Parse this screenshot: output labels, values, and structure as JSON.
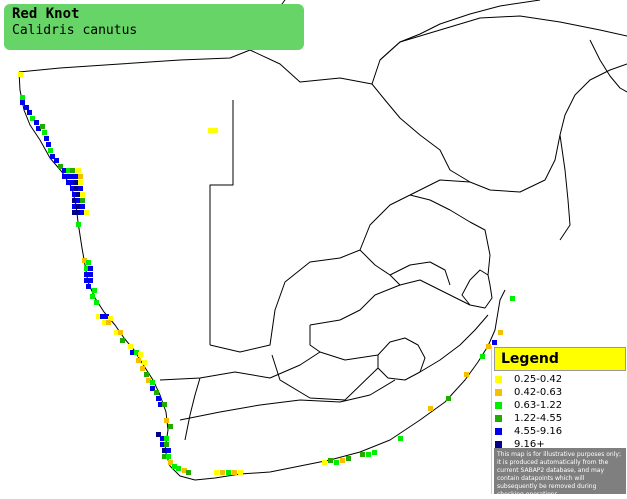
{
  "title": {
    "common_name": "Red Knot",
    "scientific_name": "Calidris canutus"
  },
  "legend": {
    "title": "Legend",
    "items": [
      {
        "label": "0.25-0.42",
        "color": "#ffff00"
      },
      {
        "label": "0.42-0.63",
        "color": "#f5c000"
      },
      {
        "label": "0.63-1.22",
        "color": "#00ee00"
      },
      {
        "label": "1.22-4.55",
        "color": "#22aa00"
      },
      {
        "label": "4.55-9.16",
        "color": "#0000ee"
      },
      {
        "label": "9.16+",
        "color": "#000088"
      }
    ],
    "disclaimer": "This map is for illustrative purposes only; it is produced automatically from the current SABAP2 database, and may contain datapoints which will subsequently be removed during checking operations."
  },
  "colors": {
    "title_box": "#66d466",
    "border_lines": "#000000",
    "background": "#ffffff"
  }
}
